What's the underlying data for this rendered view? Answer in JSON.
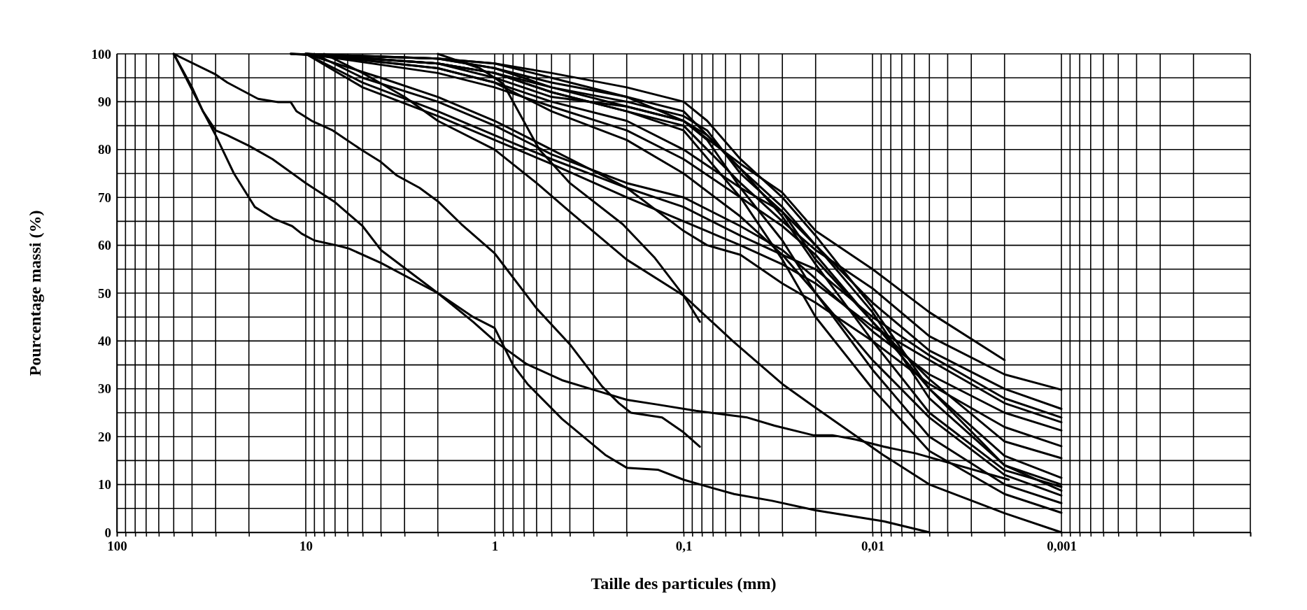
{
  "chart_data": {
    "type": "line",
    "xlabel": "Taille des particules (mm)",
    "ylabel": "Pourcentage massi (%)",
    "log": "x",
    "grid": true,
    "xlim": [
      100,
      0.0001
    ],
    "ylim": [
      0,
      100
    ],
    "xticks": [
      100,
      {
        "value": 90,
        "label": null
      },
      {
        "value": 80,
        "label": null
      },
      {
        "value": 70,
        "label": null
      },
      {
        "value": 60,
        "label": null
      },
      {
        "value": 50,
        "label": null
      },
      {
        "value": 40,
        "label": null
      },
      {
        "value": 30,
        "label": null
      },
      {
        "value": 20,
        "label": null
      },
      10,
      {
        "value": 9,
        "label": null
      },
      {
        "value": 8,
        "label": null
      },
      {
        "value": 7,
        "label": null
      },
      {
        "value": 6,
        "label": null
      },
      {
        "value": 5,
        "label": null
      },
      {
        "value": 4,
        "label": null
      },
      {
        "value": 3,
        "label": null
      },
      {
        "value": 2,
        "label": null
      },
      1,
      {
        "value": 0.9,
        "label": null
      },
      {
        "value": 0.8,
        "label": null
      },
      {
        "value": 0.7,
        "label": null
      },
      {
        "value": 0.6,
        "label": null
      },
      {
        "value": 0.5,
        "label": null
      },
      {
        "value": 0.4,
        "label": null
      },
      {
        "value": 0.3,
        "label": null
      },
      {
        "value": 0.2,
        "label": null
      },
      {
        "value": 0.1,
        "label": "0,1"
      },
      {
        "value": 0.09,
        "label": null
      },
      {
        "value": 0.08,
        "label": null
      },
      {
        "value": 0.07,
        "label": null
      },
      {
        "value": 0.06,
        "label": null
      },
      {
        "value": 0.05,
        "label": null
      },
      {
        "value": 0.04,
        "label": null
      },
      {
        "value": 0.03,
        "label": null
      },
      {
        "value": 0.02,
        "label": null
      },
      {
        "value": 0.01,
        "label": "0,01"
      },
      {
        "value": 0.009,
        "label": null
      },
      {
        "value": 0.008,
        "label": null
      },
      {
        "value": 0.007,
        "label": null
      },
      {
        "value": 0.006,
        "label": null
      },
      {
        "value": 0.005,
        "label": null
      },
      {
        "value": 0.004,
        "label": null
      },
      {
        "value": 0.003,
        "label": null
      },
      {
        "value": 0.002,
        "label": null
      },
      {
        "value": 0.001,
        "label": "0,001"
      },
      {
        "value": 0.0009,
        "label": null
      },
      {
        "value": 0.0008,
        "label": null
      },
      {
        "value": 0.0007,
        "label": null
      },
      {
        "value": 0.0006,
        "label": null
      },
      {
        "value": 0.0005,
        "label": null
      },
      {
        "value": 0.0004,
        "label": null
      },
      {
        "value": 0.0003,
        "label": null
      },
      {
        "value": 0.0002,
        "label": null
      },
      {
        "value": 0.0001,
        "label": null
      }
    ],
    "yticks": [
      0,
      {
        "value": 5,
        "label": null
      },
      10,
      {
        "value": 15,
        "label": null
      },
      20,
      {
        "value": 25,
        "label": null
      },
      30,
      {
        "value": 35,
        "label": null
      },
      40,
      {
        "value": 45,
        "label": null
      },
      50,
      {
        "value": 55,
        "label": null
      },
      60,
      {
        "value": 65,
        "label": null
      },
      70,
      {
        "value": 75,
        "label": null
      },
      80,
      {
        "value": 85,
        "label": null
      },
      90,
      {
        "value": 95,
        "label": null
      },
      100
    ],
    "series": [
      {
        "color": "#000000",
        "x": [
          50,
          40,
          35,
          30,
          24,
          20,
          18.6,
          14.7,
          11.8,
          10.5,
          9,
          6.9,
          5.9,
          4,
          2,
          1.3,
          1,
          0.8,
          0.67,
          0.44,
          0.33,
          0.26,
          0.2,
          0.137,
          0.1,
          0.077,
          0.054,
          0.034,
          0.02,
          0.0087,
          0.005
        ],
        "values": [
          100,
          93,
          88,
          83,
          75,
          70,
          68,
          65.5,
          64,
          62.4,
          61,
          60,
          59.3,
          56.3,
          50,
          45,
          42.7,
          35,
          31,
          23.7,
          19.6,
          16.2,
          13.5,
          13.1,
          11,
          9.7,
          8,
          6.6,
          4.6,
          2.3,
          0
        ]
      },
      {
        "color": "#000000",
        "x": [
          50,
          35,
          30,
          26,
          20,
          15,
          10,
          7,
          5,
          4,
          2,
          1.3,
          1,
          0.68,
          0.44,
          0.3,
          0.2,
          0.137,
          0.086,
          0.046,
          0.033,
          0.0206,
          0.0163,
          0.0123,
          0.0087,
          0.0059,
          0.0019
        ],
        "values": [
          100,
          88,
          84,
          83,
          80.8,
          78,
          73,
          69,
          64,
          59,
          50,
          44,
          40,
          35.2,
          31.8,
          29.8,
          27.7,
          26.7,
          25.4,
          24,
          22.3,
          20.3,
          20.3,
          19.4,
          17.9,
          16.5,
          11
        ]
      },
      {
        "color": "#000000",
        "x": [
          50,
          30,
          26,
          17.9,
          14,
          12,
          11.2,
          9.2,
          7.2,
          5.1,
          4,
          3.3,
          2.5,
          2,
          1.5,
          1,
          0.6,
          0.4,
          0.27,
          0.22,
          0.19,
          0.13,
          0.1,
          0.082
        ],
        "values": [
          100,
          95.7,
          94,
          90.6,
          89.9,
          89.9,
          88,
          85.9,
          84,
          80,
          77.4,
          74.6,
          72,
          69.2,
          64.4,
          58.3,
          46.8,
          39.3,
          30.5,
          27,
          25,
          24,
          20.9,
          17.9
        ]
      },
      {
        "color": "#000000",
        "x": [
          8,
          5,
          3,
          2,
          1,
          0.6,
          0.4,
          0.2,
          0.1,
          0.055,
          0.03,
          0.0206,
          0.0088,
          0.005,
          0.002,
          0.001
        ],
        "values": [
          100,
          96,
          91,
          86,
          80,
          73,
          67,
          57,
          49.5,
          40,
          31,
          26.4,
          16.2,
          10,
          4,
          0
        ]
      },
      {
        "color": "#000000",
        "x": [
          2,
          1.2,
          1,
          0.9,
          0.58,
          0.4,
          0.21,
          0.143,
          0.1,
          0.082
        ],
        "values": [
          100,
          97,
          95,
          93.7,
          80,
          73,
          64.4,
          57.5,
          49.5,
          44
        ]
      },
      {
        "color": "#000000",
        "x": [
          12,
          5,
          2,
          1,
          0.5,
          0.2,
          0.1,
          0.05,
          0.03,
          0.02,
          0.01,
          0.005,
          0.002
        ],
        "values": [
          100,
          99.5,
          99,
          98,
          95,
          91,
          86,
          77,
          71,
          63,
          55,
          46,
          36
        ]
      },
      {
        "color": "#000000",
        "x": [
          12,
          2,
          1,
          0.5,
          0.2,
          0.1,
          0.05,
          0.03,
          0.02,
          0.01,
          0.005,
          0.002,
          0.001
        ],
        "values": [
          100,
          98,
          96,
          92,
          88,
          85,
          73,
          65,
          59,
          51,
          41,
          33,
          29.8
        ]
      },
      {
        "color": "#000000",
        "x": [
          10,
          2,
          1,
          0.5,
          0.2,
          0.1,
          0.05,
          0.03,
          0.02,
          0.01,
          0.005,
          0.002,
          0.001
        ],
        "values": [
          100,
          97,
          94,
          90,
          86,
          80,
          72,
          67,
          60,
          48,
          38,
          30,
          25.8
        ]
      },
      {
        "color": "#000000",
        "x": [
          10,
          5,
          2,
          1,
          0.5,
          0.2,
          0.1,
          0.05,
          0.03,
          0.02,
          0.01,
          0.005,
          0.002,
          0.001
        ],
        "values": [
          100,
          94,
          88,
          83,
          78,
          72,
          68,
          62,
          58,
          55,
          45,
          37,
          28,
          24
        ]
      },
      {
        "color": "#000000",
        "x": [
          10,
          5,
          2,
          1,
          0.5,
          0.2,
          0.1,
          0.05,
          0.03,
          0.02,
          0.01,
          0.005,
          0.002,
          0.001
        ],
        "values": [
          100,
          93,
          87,
          82,
          77,
          70,
          65,
          60,
          56,
          52,
          43,
          36,
          27,
          23
        ]
      },
      {
        "color": "#000000",
        "x": [
          9,
          5,
          2,
          1,
          0.5,
          0.2,
          0.1,
          0.05,
          0.03,
          0.02,
          0.01,
          0.005,
          0.002,
          0.001
        ],
        "values": [
          100,
          95,
          90,
          85,
          79,
          73,
          70,
          64,
          59,
          53,
          42,
          33,
          25,
          21.3
        ]
      },
      {
        "color": "#000000",
        "x": [
          10,
          4,
          2,
          1,
          0.5,
          0.2,
          0.1,
          0.075,
          0.05,
          0.03,
          0.02,
          0.01,
          0.005,
          0.002,
          0.001
        ],
        "values": [
          100,
          95,
          91,
          86,
          80,
          72,
          63,
          60,
          58,
          52,
          48,
          40,
          31,
          22,
          18
        ]
      },
      {
        "color": "#000000",
        "x": [
          10,
          2,
          1,
          0.5,
          0.2,
          0.1,
          0.05,
          0.03,
          0.02,
          0.01,
          0.005,
          0.002,
          0.001
        ],
        "values": [
          100,
          96,
          93,
          89,
          84,
          78,
          70,
          64,
          58,
          44,
          32,
          19,
          15.5
        ]
      },
      {
        "color": "#000000",
        "x": [
          10,
          2,
          1,
          0.5,
          0.2,
          0.1,
          0.075,
          0.05,
          0.03,
          0.02,
          0.01,
          0.005,
          0.002,
          0.001
        ],
        "values": [
          100,
          98,
          96,
          93,
          90,
          87,
          84,
          75,
          67,
          57,
          44,
          30,
          16,
          11.4
        ]
      },
      {
        "color": "#000000",
        "x": [
          12,
          2,
          1,
          0.5,
          0.2,
          0.1,
          0.075,
          0.05,
          0.03,
          0.02,
          0.01,
          0.005,
          0.002,
          0.001
        ],
        "values": [
          100,
          99,
          97,
          94,
          91,
          88,
          83,
          76,
          68,
          60,
          46,
          28,
          14,
          10
        ]
      },
      {
        "color": "#000000",
        "x": [
          10,
          2,
          1,
          0.5,
          0.2,
          0.1,
          0.075,
          0.05,
          0.03,
          0.02,
          0.01,
          0.005,
          0.002,
          0.001
        ],
        "values": [
          100,
          98,
          95,
          91,
          89,
          86,
          83,
          76,
          66,
          56,
          40,
          25,
          13,
          9.5
        ]
      },
      {
        "color": "#000000",
        "x": [
          10,
          2,
          1,
          0.5,
          0.2,
          0.1,
          0.075,
          0.05,
          0.03,
          0.02,
          0.01,
          0.005,
          0.002,
          0.001
        ],
        "values": [
          100,
          99,
          98,
          96,
          93,
          90,
          86,
          78,
          70,
          62,
          47,
          30,
          14,
          8.7
        ]
      },
      {
        "color": "#000000",
        "x": [
          10,
          2,
          1,
          0.5,
          0.2,
          0.1,
          0.05,
          0.03,
          0.02,
          0.01,
          0.005,
          0.002,
          0.001
        ],
        "values": [
          100,
          97,
          94,
          88,
          82,
          75,
          66,
          58,
          50,
          36,
          24,
          12,
          7.7
        ]
      },
      {
        "color": "#000000",
        "x": [
          10,
          2,
          1,
          0.5,
          0.2,
          0.1,
          0.075,
          0.05,
          0.03,
          0.02,
          0.01,
          0.005,
          0.002,
          0.001
        ],
        "values": [
          100,
          99,
          97,
          93,
          89,
          86,
          82,
          72,
          61,
          50,
          34,
          20,
          10,
          6.1
        ]
      },
      {
        "color": "#000000",
        "x": [
          10,
          2,
          1,
          0.5,
          0.2,
          0.1,
          0.05,
          0.03,
          0.02,
          0.01,
          0.005,
          0.002,
          0.001
        ],
        "values": [
          100,
          98,
          96,
          92,
          88,
          84,
          70,
          57,
          45,
          30,
          17,
          8,
          4.1
        ]
      }
    ]
  }
}
